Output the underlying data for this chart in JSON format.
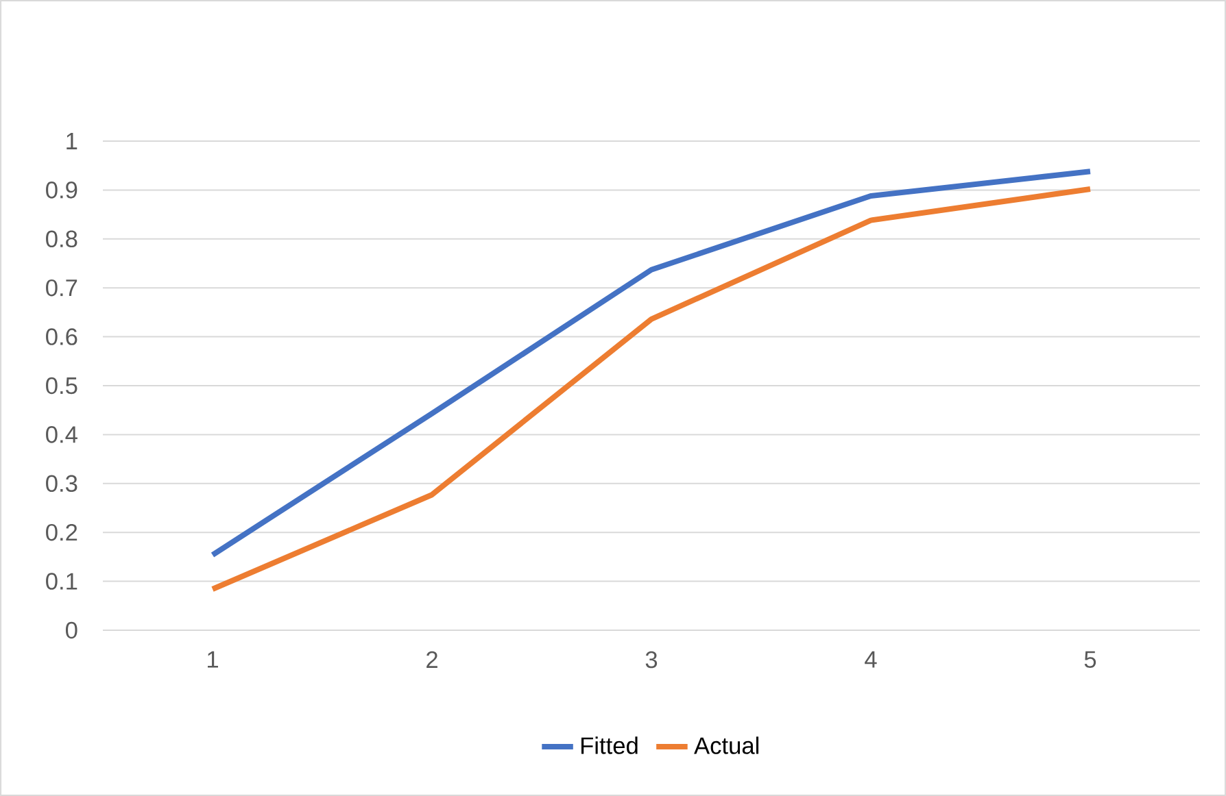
{
  "chart_data": {
    "type": "line",
    "categories": [
      "1",
      "2",
      "3",
      "4",
      "5"
    ],
    "series": [
      {
        "name": "Fitted",
        "color": "#4472c4",
        "values": [
          0.154,
          0.443,
          0.737,
          0.888,
          0.938
        ]
      },
      {
        "name": "Actual",
        "color": "#ed7d31",
        "values": [
          0.084,
          0.277,
          0.636,
          0.838,
          0.902
        ]
      }
    ],
    "ylim": [
      0,
      1
    ],
    "yticks": [
      0,
      0.1,
      0.2,
      0.3,
      0.4,
      0.5,
      0.6,
      0.7,
      0.8,
      0.9,
      1
    ],
    "grid": "y",
    "legend": "bottom"
  }
}
